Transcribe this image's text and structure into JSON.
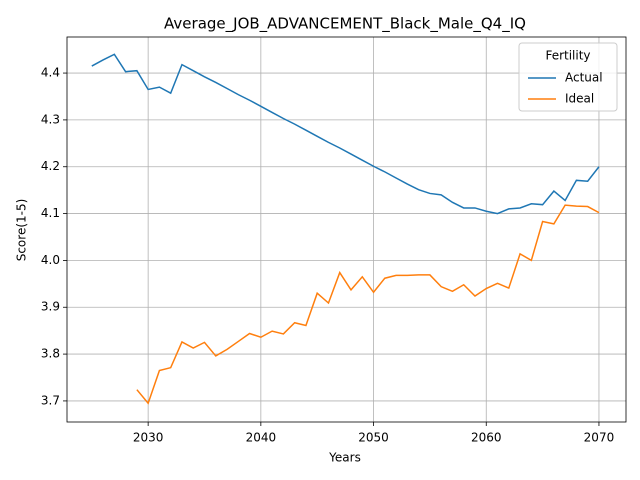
{
  "chart_data": {
    "type": "line",
    "title": "Average_JOB_ADVANCEMENT_Black_Male_Q4_IQ",
    "x_label": "Years",
    "y_label": "Score(1-5)",
    "x": [
      2025,
      2026,
      2027,
      2028,
      2029,
      2030,
      2031,
      2032,
      2033,
      2034,
      2035,
      2036,
      2037,
      2038,
      2039,
      2040,
      2041,
      2042,
      2043,
      2044,
      2045,
      2046,
      2047,
      2048,
      2049,
      2050,
      2051,
      2052,
      2053,
      2054,
      2055,
      2056,
      2057,
      2058,
      2059,
      2060,
      2061,
      2062,
      2063,
      2064,
      2065,
      2066,
      2067,
      2068,
      2069,
      2070
    ],
    "series": [
      {
        "name": "Actual",
        "color": "#1f77b4",
        "values": [
          4.415,
          4.428,
          4.44,
          4.403,
          4.405,
          4.365,
          4.37,
          4.357,
          4.418,
          4.405,
          4.392,
          4.38,
          4.367,
          4.354,
          4.342,
          4.329,
          4.316,
          4.303,
          4.291,
          4.278,
          4.265,
          4.252,
          4.24,
          4.227,
          4.214,
          4.201,
          4.189,
          4.176,
          4.163,
          4.151,
          4.143,
          4.14,
          4.124,
          4.112,
          4.112,
          4.105,
          4.1,
          4.11,
          4.112,
          4.121,
          4.119,
          4.148,
          4.128,
          4.171,
          4.169,
          4.2
        ]
      },
      {
        "name": "Ideal",
        "color": "#ff7f0e",
        "values": [
          null,
          null,
          null,
          null,
          3.724,
          3.695,
          3.765,
          3.771,
          3.826,
          3.813,
          3.825,
          3.796,
          3.81,
          3.827,
          3.844,
          3.836,
          3.849,
          3.843,
          3.867,
          3.861,
          3.93,
          3.909,
          3.974,
          3.937,
          3.965,
          3.932,
          3.962,
          3.968,
          3.968,
          3.969,
          3.969,
          3.944,
          3.934,
          3.948,
          3.924,
          3.94,
          3.951,
          3.941,
          4.014,
          4.0,
          4.083,
          4.078,
          4.118,
          4.116,
          4.115,
          4.102
        ]
      }
    ],
    "xlim": [
      2022.8,
      2072.4
    ],
    "xticks": [
      2030,
      2040,
      2050,
      2060,
      2070
    ],
    "ylim": [
      3.655,
      4.477
    ],
    "yticks": [
      3.7,
      3.8,
      3.9,
      {
        "value": 4,
        "label": "4.0"
      },
      4.1,
      4.2,
      4.3,
      4.4
    ],
    "grid": true,
    "legend_title": "Fertility",
    "legend_position": "upper right"
  }
}
